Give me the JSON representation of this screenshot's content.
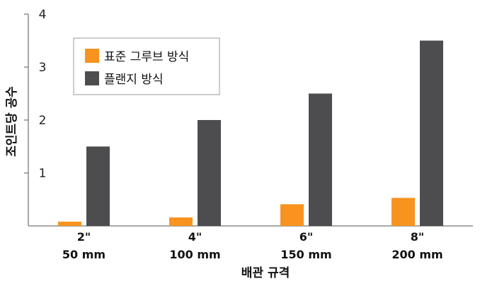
{
  "chart_data": {
    "type": "bar",
    "categories": [
      [
        "2\"",
        "50 mm"
      ],
      [
        "4\"",
        "100 mm"
      ],
      [
        "6\"",
        "150 mm"
      ],
      [
        "8\"",
        "200 mm"
      ]
    ],
    "series": [
      {
        "name": "표준 그루브 방식",
        "color": "#F7931E",
        "values": [
          0.08,
          0.16,
          0.41,
          0.53
        ]
      },
      {
        "name": "플랜지 방식",
        "color": "#4D4D4F",
        "values": [
          1.5,
          2.0,
          2.5,
          3.5
        ]
      }
    ],
    "xlabel": "배관 규격",
    "ylabel": "조인트당 공수",
    "ylim": [
      0,
      4
    ],
    "yticks": [
      1,
      2,
      3,
      4
    ],
    "grid": false,
    "legend_position": "top-left"
  }
}
